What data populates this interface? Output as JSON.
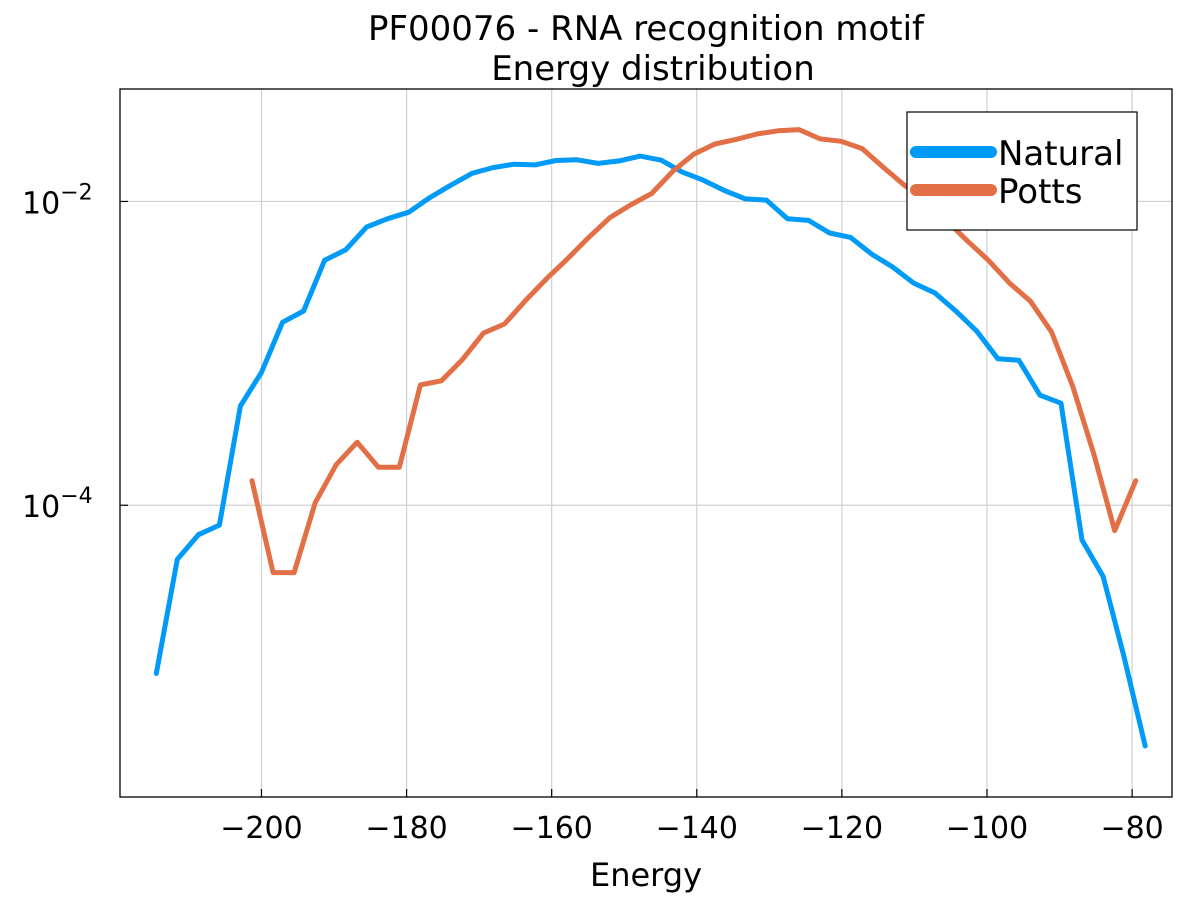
{
  "chart_data": {
    "type": "line",
    "title": "PF00076 - RNA recognition motif",
    "subtitle": "Energy distribution",
    "xlabel": "Energy",
    "ylabel": "",
    "yscale": "log10",
    "xlim": [
      -219.5,
      -74.5
    ],
    "ylim": [
      1.2e-06,
      0.055
    ],
    "grid": true,
    "legend_position": "top-right",
    "x_ticks": [
      -200,
      -180,
      -160,
      -140,
      -120,
      -100,
      -80
    ],
    "x_tick_labels": [
      "−200",
      "−180",
      "−160",
      "−140",
      "−120",
      "−100",
      "−80"
    ],
    "y_ticks": [
      0.0001,
      0.01
    ],
    "y_tick_labels": [
      {
        "base": "10",
        "exp": "−4"
      },
      {
        "base": "10",
        "exp": "−2"
      }
    ],
    "series": [
      {
        "name": "Natural",
        "color": "#009af9",
        "x": [
          -214.5,
          -211.6,
          -208.7,
          -205.8,
          -202.9,
          -200.0,
          -197.1,
          -194.2,
          -191.3,
          -188.4,
          -185.5,
          -182.6,
          -179.7,
          -176.8,
          -173.9,
          -171.0,
          -168.1,
          -165.2,
          -162.3,
          -159.4,
          -156.5,
          -153.6,
          -150.7,
          -147.8,
          -144.9,
          -142.0,
          -139.1,
          -136.2,
          -133.3,
          -130.4,
          -127.5,
          -124.6,
          -121.7,
          -118.8,
          -115.9,
          -113.0,
          -110.1,
          -107.2,
          -104.3,
          -101.4,
          -98.5,
          -95.6,
          -92.7,
          -89.8,
          -86.9,
          -84.0,
          -81.1,
          -78.2
        ],
        "y": [
          7.8e-06,
          4.4e-05,
          6.4e-05,
          7.4e-05,
          0.00045,
          0.00075,
          0.0016,
          0.0019,
          0.0041,
          0.0048,
          0.0068,
          0.0077,
          0.0085,
          0.0106,
          0.0128,
          0.0153,
          0.0167,
          0.0176,
          0.0174,
          0.0186,
          0.0188,
          0.0178,
          0.0185,
          0.0199,
          0.0187,
          0.0156,
          0.0138,
          0.0118,
          0.0104,
          0.0102,
          0.0077,
          0.0075,
          0.0062,
          0.0058,
          0.0045,
          0.0037,
          0.0029,
          0.0025,
          0.0019,
          0.0014,
          0.00092,
          0.0009,
          0.00053,
          0.00047,
          5.9e-05,
          3.4e-05,
          1e-05,
          2.6e-06
        ]
      },
      {
        "name": "Potts",
        "color": "#e26f46",
        "x": [
          -201.3,
          -198.4,
          -195.5,
          -192.6,
          -189.7,
          -186.8,
          -183.9,
          -181.0,
          -178.1,
          -175.2,
          -172.3,
          -169.4,
          -166.5,
          -163.6,
          -160.7,
          -157.8,
          -154.9,
          -152.0,
          -149.1,
          -146.2,
          -143.3,
          -140.4,
          -137.5,
          -134.6,
          -131.7,
          -128.8,
          -125.9,
          -123.0,
          -120.1,
          -117.2,
          -114.3,
          -111.4,
          -108.5,
          -105.6,
          -102.7,
          -99.8,
          -96.9,
          -94.0,
          -91.1,
          -88.2,
          -85.3,
          -82.4,
          -79.5
        ],
        "y": [
          0.000145,
          3.6e-05,
          3.6e-05,
          0.000104,
          0.000185,
          0.00026,
          0.000178,
          0.000178,
          0.00062,
          0.00066,
          0.00091,
          0.00136,
          0.00156,
          0.00223,
          0.0031,
          0.0042,
          0.0058,
          0.0078,
          0.0095,
          0.0113,
          0.0158,
          0.0205,
          0.0239,
          0.0256,
          0.0278,
          0.0292,
          0.0297,
          0.0258,
          0.0249,
          0.0223,
          0.0168,
          0.0128,
          0.0103,
          0.0075,
          0.0055,
          0.0041,
          0.0029,
          0.0022,
          0.00138,
          0.00061,
          0.00022,
          6.8e-05,
          0.000145
        ]
      }
    ]
  }
}
